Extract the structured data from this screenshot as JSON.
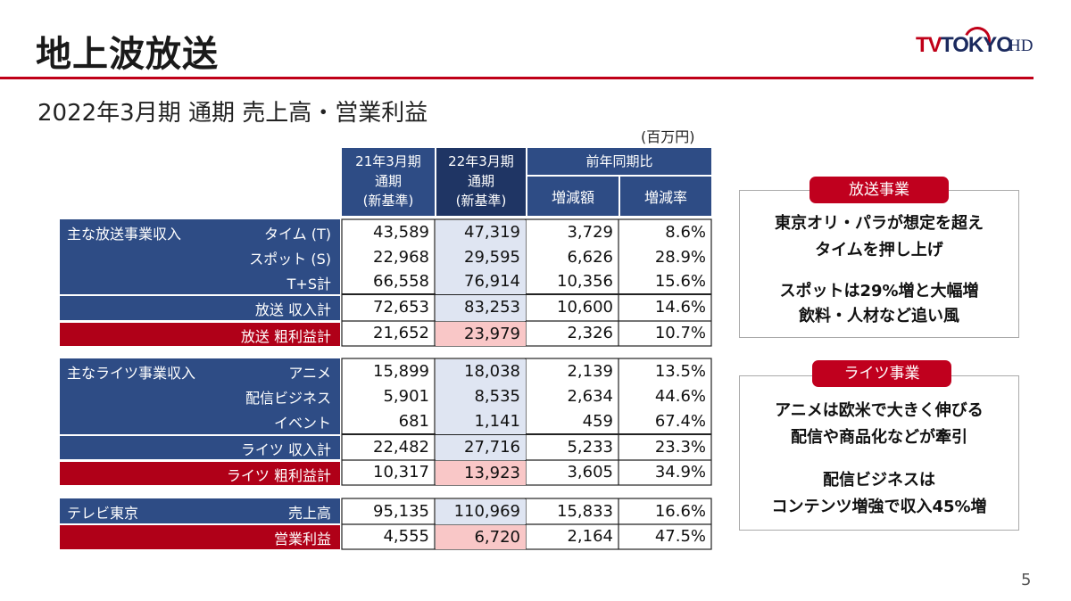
{
  "title": "地上波放送",
  "subtitle": "2022年3月期 通期 売上高・営業利益",
  "unit": "(百万円)",
  "logo": {
    "tv": "TV",
    "tokyo": "TOKYO",
    "hd": "HD"
  },
  "page_number": "5",
  "colors": {
    "accent_red": "#c00018",
    "header_blue": "#2e4c85",
    "highlight_blue": "#dfe5f2",
    "highlight_pink": "#f9c7c7"
  },
  "table": {
    "headers": {
      "prev_year": [
        "21年3月期",
        "通期",
        "(新基準)"
      ],
      "curr_year": [
        "22年3月期",
        "通期",
        "(新基準)"
      ],
      "yoy": "前年同期比",
      "diff": "増減額",
      "rate": "増減率"
    },
    "groups": [
      {
        "rows": [
          {
            "left": "主な放送事業収入",
            "right": "タイム (T)",
            "v21": "43,589",
            "v22": "47,319",
            "diff": "3,729",
            "rate": "8.6%"
          },
          {
            "left": "",
            "right": "スポット (S)",
            "v21": "22,968",
            "v22": "29,595",
            "diff": "6,626",
            "rate": "28.9%"
          },
          {
            "left": "",
            "right": "T+S計",
            "v21": "66,558",
            "v22": "76,914",
            "diff": "10,356",
            "rate": "15.6%"
          },
          {
            "left": "",
            "right": "放送 収入計",
            "v21": "72,653",
            "v22": "83,253",
            "diff": "10,600",
            "rate": "14.6%"
          },
          {
            "left": "",
            "right": "放送 粗利益計",
            "v21": "21,652",
            "v22": "23,979",
            "diff": "2,326",
            "rate": "10.7%"
          }
        ]
      },
      {
        "rows": [
          {
            "left": "主なライツ事業収入",
            "right": "アニメ",
            "v21": "15,899",
            "v22": "18,038",
            "diff": "2,139",
            "rate": "13.5%"
          },
          {
            "left": "",
            "right": "配信ビジネス",
            "v21": "5,901",
            "v22": "8,535",
            "diff": "2,634",
            "rate": "44.6%"
          },
          {
            "left": "",
            "right": "イベント",
            "v21": "681",
            "v22": "1,141",
            "diff": "459",
            "rate": "67.4%"
          },
          {
            "left": "",
            "right": "ライツ 収入計",
            "v21": "22,482",
            "v22": "27,716",
            "diff": "5,233",
            "rate": "23.3%"
          },
          {
            "left": "",
            "right": "ライツ 粗利益計",
            "v21": "10,317",
            "v22": "13,923",
            "diff": "3,605",
            "rate": "34.9%"
          }
        ]
      },
      {
        "rows": [
          {
            "left": "テレビ東京",
            "right": "売上高",
            "v21": "95,135",
            "v22": "110,969",
            "diff": "15,833",
            "rate": "16.6%"
          },
          {
            "left": "",
            "right": "営業利益",
            "v21": "4,555",
            "v22": "6,720",
            "diff": "2,164",
            "rate": "47.5%"
          }
        ]
      }
    ]
  },
  "notes": {
    "broadcast": {
      "tag": "放送事業",
      "lines": [
        "東京オリ・パラが想定を超え",
        "タイムを押し上げ",
        "スポットは29%増と大幅増",
        "飲料・人材など追い風"
      ]
    },
    "rights": {
      "tag": "ライツ事業",
      "lines": [
        "アニメは欧米で大きく伸びる",
        "配信や商品化などが牽引",
        "配信ビジネスは",
        "コンテンツ増強で収入45%増"
      ]
    }
  }
}
